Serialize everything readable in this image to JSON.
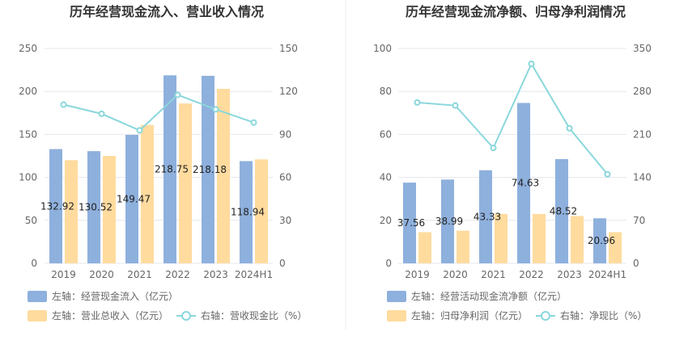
{
  "colors": {
    "bar_primary": "#8EB0DD",
    "bar_secondary": "#FFDB9E",
    "line": "#8AD7DC",
    "grid": "#E4E7EE",
    "divider": "#EEEEEE"
  },
  "chart_data": [
    {
      "type": "bar",
      "title": "历年经营现金流入、营业收入情况",
      "categories": [
        "2019",
        "2020",
        "2021",
        "2022",
        "2023",
        "2024H1"
      ],
      "left_axis": {
        "ticks": [
          "0",
          "50",
          "100",
          "150",
          "200",
          "250"
        ],
        "ylim": [
          0,
          250
        ]
      },
      "right_axis": {
        "ticks": [
          "0",
          "30",
          "60",
          "90",
          "120",
          "150"
        ],
        "ylim": [
          0,
          150
        ]
      },
      "series": [
        {
          "name": "左轴：经营现金流入（亿元）",
          "axis": "left",
          "kind": "bar",
          "color_key": "bar_primary",
          "values": [
            132.92,
            130.52,
            149.47,
            218.75,
            218.18,
            118.94
          ],
          "labels": [
            "132.92",
            "130.52",
            "149.47",
            "218.75",
            "218.18",
            "118.94"
          ]
        },
        {
          "name": "左轴：营业总收入（亿元）",
          "axis": "left",
          "kind": "bar",
          "color_key": "bar_secondary",
          "values": [
            120,
            125,
            161,
            186,
            203,
            121
          ]
        },
        {
          "name": "右轴：营收现金比（%）",
          "axis": "right",
          "kind": "line",
          "color_key": "line",
          "values": [
            110.8,
            104.4,
            92.8,
            117.6,
            107.5,
            98.3
          ]
        }
      ],
      "legend": "bottom-left",
      "grid": true
    },
    {
      "type": "bar",
      "title": "历年经营现金流净额、归母净利润情况",
      "categories": [
        "2019",
        "2020",
        "2021",
        "2022",
        "2023",
        "2024H1"
      ],
      "left_axis": {
        "ticks": [
          "0",
          "20",
          "40",
          "60",
          "80",
          "100"
        ],
        "ylim": [
          0,
          100
        ]
      },
      "right_axis": {
        "ticks": [
          "0",
          "70",
          "140",
          "210",
          "280",
          "350"
        ],
        "ylim": [
          0,
          350
        ]
      },
      "series": [
        {
          "name": "左轴：经营活动现金流净额（亿元）",
          "axis": "left",
          "kind": "bar",
          "color_key": "bar_primary",
          "values": [
            37.56,
            38.99,
            43.33,
            74.63,
            48.52,
            20.96
          ],
          "labels": [
            "37.56",
            "38.99",
            "43.33",
            "74.63",
            "48.52",
            "20.96"
          ]
        },
        {
          "name": "左轴：归母净利润（亿元）",
          "axis": "left",
          "kind": "bar",
          "color_key": "bar_secondary",
          "values": [
            14.5,
            15.2,
            23.0,
            23.0,
            22.0,
            14.5
          ]
        },
        {
          "name": "右轴：净现比（%）",
          "axis": "right",
          "kind": "line",
          "color_key": "line",
          "values": [
            262,
            257,
            188,
            325,
            220,
            145
          ]
        }
      ],
      "legend": "bottom-left",
      "grid": true
    }
  ]
}
